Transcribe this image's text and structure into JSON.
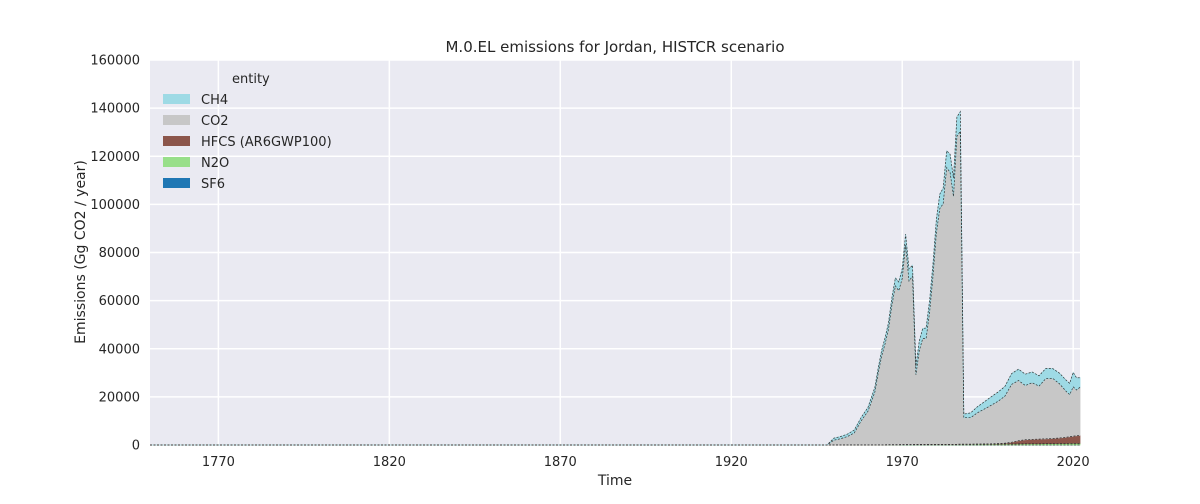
{
  "chart_data": {
    "type": "area",
    "stacked": true,
    "title": "M.0.EL emissions for Jordan, HISTCR scenario",
    "xlabel": "Time",
    "ylabel": "Emissions (Gg CO2 / year)",
    "xlim": [
      1750,
      2022
    ],
    "ylim": [
      0,
      160000
    ],
    "xticks": [
      1770,
      1820,
      1870,
      1920,
      1970,
      2020
    ],
    "xtick_labels": [
      "1770",
      "1820",
      "1870",
      "1920",
      "1970",
      "2020"
    ],
    "yticks": [
      0,
      20000,
      40000,
      60000,
      80000,
      100000,
      120000,
      140000,
      160000
    ],
    "ytick_labels": [
      "0",
      "20000",
      "40000",
      "60000",
      "80000",
      "100000",
      "120000",
      "140000",
      "160000"
    ],
    "grid": true,
    "legend": {
      "title": "entity",
      "placement": "top-left",
      "entries": [
        "CH4",
        "CO2",
        "HFCS (AR6GWP100)",
        "N2O",
        "SF6"
      ]
    },
    "colors": {
      "CH4": "#9edae5",
      "CO2": "#c7c7c7",
      "HFCS (AR6GWP100)": "#8c564b",
      "N2O": "#98df8a",
      "SF6": "#1f77b4",
      "background": "#eaeaf2",
      "grid": "#ffffff"
    },
    "stack_order_bottom_to_top": [
      "SF6",
      "N2O",
      "HFCS (AR6GWP100)",
      "CO2",
      "CH4"
    ],
    "x": [
      1750,
      1800,
      1850,
      1900,
      1948,
      1950,
      1952,
      1954,
      1956,
      1958,
      1960,
      1962,
      1963,
      1964,
      1965,
      1966,
      1967,
      1968,
      1969,
      1970,
      1971,
      1972,
      1973,
      1974,
      1975,
      1976,
      1977,
      1978,
      1979,
      1980,
      1981,
      1982,
      1983,
      1984,
      1985,
      1986,
      1987,
      1988,
      1990,
      1992,
      1994,
      1996,
      1998,
      2000,
      2002,
      2004,
      2006,
      2008,
      2010,
      2012,
      2014,
      2016,
      2018,
      2019,
      2020,
      2021,
      2022
    ],
    "series": [
      {
        "name": "SF6",
        "values": [
          0,
          0,
          0,
          0,
          0,
          0,
          0,
          0,
          0,
          0,
          0,
          0,
          0,
          0,
          0,
          0,
          0,
          0,
          0,
          0,
          0,
          0,
          0,
          0,
          0,
          0,
          0,
          0,
          0,
          0,
          0,
          0,
          0,
          0,
          0,
          0,
          0,
          0,
          0,
          0,
          0,
          0,
          0,
          0,
          0,
          0,
          0,
          0,
          0,
          0,
          0,
          0,
          0,
          0,
          0,
          0,
          0
        ]
      },
      {
        "name": "N2O",
        "values": [
          0,
          0,
          0,
          0,
          0,
          10,
          20,
          30,
          40,
          50,
          60,
          70,
          80,
          90,
          100,
          110,
          120,
          130,
          140,
          150,
          160,
          170,
          180,
          190,
          200,
          210,
          220,
          230,
          240,
          250,
          260,
          270,
          280,
          290,
          300,
          310,
          320,
          330,
          350,
          370,
          390,
          410,
          430,
          450,
          470,
          500,
          520,
          540,
          560,
          580,
          600,
          620,
          640,
          650,
          660,
          670,
          680
        ]
      },
      {
        "name": "HFCS (AR6GWP100)",
        "values": [
          0,
          0,
          0,
          0,
          0,
          0,
          0,
          0,
          0,
          0,
          0,
          0,
          0,
          0,
          0,
          0,
          0,
          0,
          0,
          0,
          0,
          0,
          0,
          0,
          0,
          0,
          0,
          0,
          0,
          0,
          0,
          0,
          0,
          0,
          0,
          0,
          0,
          0,
          0,
          0,
          50,
          100,
          200,
          300,
          700,
          1300,
          1700,
          1800,
          1900,
          2000,
          2100,
          2300,
          2600,
          2800,
          3000,
          3200,
          3300
        ]
      },
      {
        "name": "CO2",
        "values": [
          0,
          0,
          0,
          0,
          0,
          2000,
          2600,
          3500,
          5000,
          10000,
          14000,
          22000,
          30000,
          37000,
          42000,
          48000,
          58000,
          66000,
          64000,
          69000,
          83000,
          68000,
          70000,
          29000,
          39000,
          44000,
          44000,
          55000,
          70000,
          88000,
          98000,
          100000,
          115000,
          113000,
          103000,
          128000,
          130000,
          11000,
          11000,
          13000,
          14500,
          16000,
          17500,
          19500,
          24000,
          25000,
          22500,
          23500,
          22000,
          25000,
          25000,
          22500,
          19000,
          17500,
          20500,
          19000,
          20000
        ]
      },
      {
        "name": "CH4",
        "values": [
          0,
          0,
          0,
          0,
          0,
          800,
          900,
          1000,
          1200,
          1400,
          1600,
          1900,
          2100,
          2300,
          2500,
          2700,
          3000,
          3300,
          3600,
          4000,
          4500,
          5000,
          4500,
          3500,
          4000,
          4200,
          4400,
          4700,
          5000,
          5500,
          6000,
          6500,
          7000,
          7500,
          7600,
          8000,
          8200,
          1500,
          2000,
          2500,
          3000,
          3500,
          3800,
          4000,
          4500,
          4700,
          4700,
          4500,
          4300,
          4200,
          4100,
          4400,
          4600,
          4700,
          6000,
          5000,
          4000
        ]
      }
    ]
  }
}
